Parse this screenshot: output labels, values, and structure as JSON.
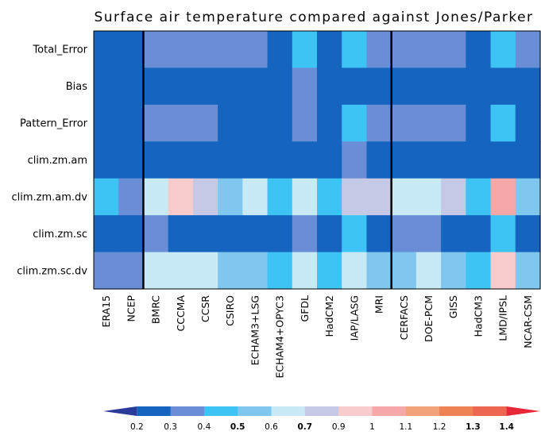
{
  "chart_data": {
    "type": "heatmap",
    "title": "Surface air temperature compared against Jones/Parker",
    "rows": [
      "Total_Error",
      "Bias",
      "Pattern_Error",
      "clim.zm.am",
      "clim.zm.am.dv",
      "clim.zm.sc",
      "clim.zm.sc.dv"
    ],
    "columns": [
      "ERA15",
      "NCEP",
      "BMRC",
      "CCCMA",
      "CCSR",
      "CSIRO",
      "ECHAM3+LSG",
      "ECHAM4+OPYC3",
      "GFDL",
      "HadCM2",
      "IAP/LASG",
      "MRI",
      "CERFACS",
      "DOE-PCM",
      "GISS",
      "HadCM3",
      "LMD/IPSL",
      "NCAR-CSM"
    ],
    "group_separators_after_column": [
      1,
      11
    ],
    "values": [
      [
        0.2,
        0.2,
        0.3,
        0.3,
        0.3,
        0.3,
        0.3,
        0.2,
        0.4,
        0.2,
        0.4,
        0.3,
        0.3,
        0.3,
        0.3,
        0.2,
        0.4,
        0.3
      ],
      [
        0.2,
        0.2,
        0.2,
        0.2,
        0.2,
        0.2,
        0.2,
        0.2,
        0.3,
        0.2,
        0.2,
        0.2,
        0.2,
        0.2,
        0.2,
        0.2,
        0.2,
        0.2
      ],
      [
        0.2,
        0.2,
        0.3,
        0.3,
        0.3,
        0.2,
        0.2,
        0.2,
        0.3,
        0.2,
        0.4,
        0.3,
        0.3,
        0.3,
        0.3,
        0.2,
        0.4,
        0.2
      ],
      [
        0.2,
        0.2,
        0.2,
        0.2,
        0.2,
        0.2,
        0.2,
        0.2,
        0.2,
        0.2,
        0.3,
        0.2,
        0.2,
        0.2,
        0.2,
        0.2,
        0.2,
        0.2
      ],
      [
        0.4,
        0.3,
        0.6,
        0.9,
        0.7,
        0.5,
        0.6,
        0.4,
        0.6,
        0.4,
        0.7,
        0.7,
        0.6,
        0.6,
        0.7,
        0.4,
        1.0,
        0.5
      ],
      [
        0.2,
        0.2,
        0.3,
        0.2,
        0.2,
        0.2,
        0.2,
        0.2,
        0.3,
        0.2,
        0.4,
        0.2,
        0.3,
        0.3,
        0.2,
        0.2,
        0.4,
        0.2
      ],
      [
        0.3,
        0.3,
        0.6,
        0.6,
        0.6,
        0.5,
        0.5,
        0.4,
        0.6,
        0.4,
        0.6,
        0.5,
        0.5,
        0.6,
        0.5,
        0.4,
        0.9,
        0.5
      ]
    ],
    "colorbar": {
      "ticks": [
        "0.2",
        "0.3",
        "0.4",
        "0.5",
        "0.6",
        "0.7",
        "0.9",
        "1",
        "1.1",
        "1.2",
        "1.3",
        "1.4"
      ],
      "colors": [
        "#2a3b9a",
        "#1565c0",
        "#6a8ed6",
        "#3ec3f5",
        "#7fc7ef",
        "#c8eaf7",
        "#c6c9e6",
        "#f8cccc",
        "#f4a8a8",
        "#f3a37a",
        "#ef8255",
        "#ec6650",
        "#e8283a"
      ]
    }
  }
}
